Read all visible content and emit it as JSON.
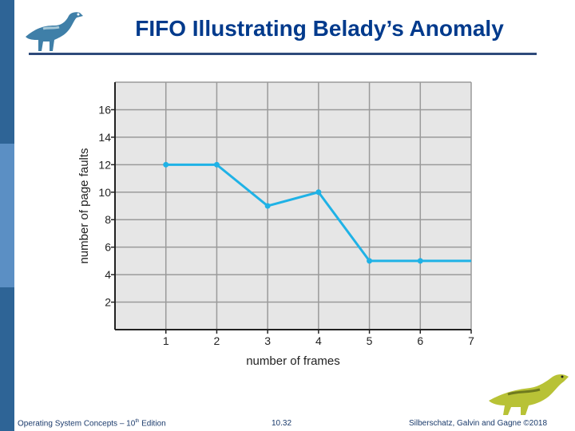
{
  "slide": {
    "title": "FIFO Illustrating Belady’s Anomaly",
    "footer_left_prefix": "Operating System Concepts – 10",
    "footer_left_sup": "th",
    "footer_left_suffix": " Edition",
    "footer_center": "10.32",
    "footer_right": "Silberschatz, Galvin and Gagne ©2018"
  },
  "colors": {
    "title": "#003a8c",
    "line": "#1fb2e6",
    "grid": "#9a9a9a",
    "plot_bg": "#e6e6e6",
    "side_bar": "#2e6496"
  },
  "icons": [
    "dinosaur-logo",
    "dinosaur-illustration"
  ],
  "chart_data": {
    "type": "line",
    "title": "",
    "xlabel": "number of frames",
    "ylabel": "number of page faults",
    "x_ticks": [
      1,
      2,
      3,
      4,
      5,
      6,
      7
    ],
    "y_ticks": [
      2,
      4,
      6,
      8,
      10,
      12,
      14,
      16
    ],
    "xlim": [
      0,
      7
    ],
    "ylim": [
      0,
      18
    ],
    "grid": true,
    "series": [
      {
        "x": [
          1,
          2,
          3,
          4,
          5,
          6,
          7
        ],
        "y": [
          12,
          12,
          9,
          10,
          5,
          5,
          5
        ],
        "markers_at": [
          1,
          2,
          3,
          4,
          5,
          6
        ]
      }
    ]
  }
}
